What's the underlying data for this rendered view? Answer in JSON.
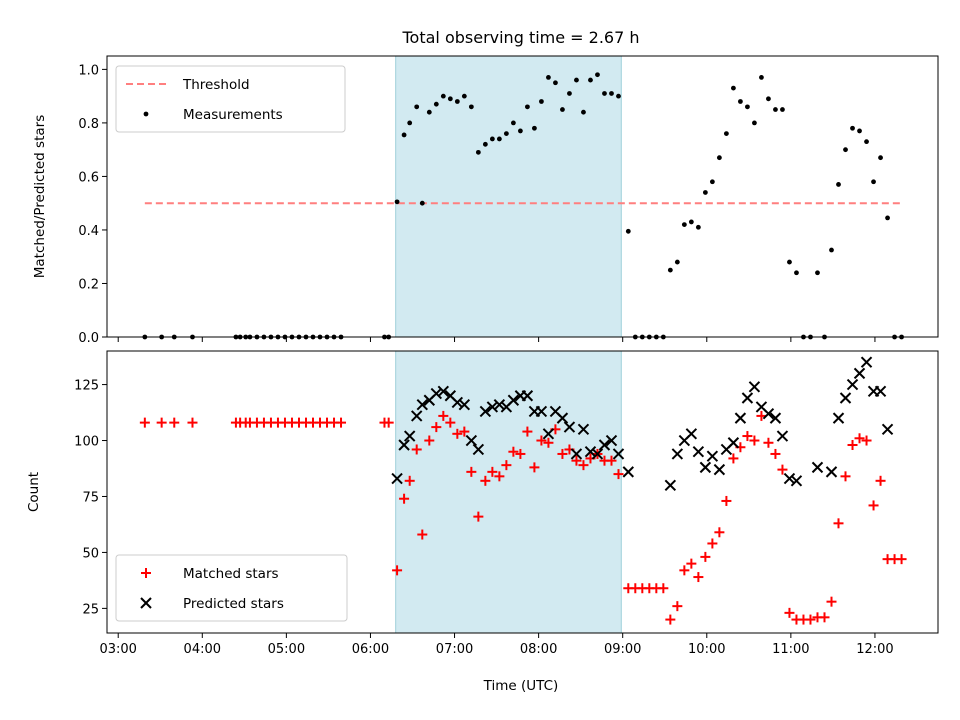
{
  "title": "Total observing time = 2.67 h",
  "xlabel": "Time (UTC)",
  "x_ticks": [
    "03:00",
    "04:00",
    "05:00",
    "06:00",
    "07:00",
    "08:00",
    "09:00",
    "10:00",
    "11:00",
    "12:00"
  ],
  "colors": {
    "measurement": "#000000",
    "threshold": "#ff7f7f",
    "matched": "#ff0000",
    "predicted": "#000000",
    "window": "#add8e6"
  },
  "chart_data": [
    {
      "type": "scatter",
      "ylabel": "Matched/Predicted stars",
      "xlim": [
        "02:52",
        "12:45"
      ],
      "ylim": [
        0,
        1.05
      ],
      "y_ticks": [
        "0.0",
        "0.2",
        "0.4",
        "0.6",
        "0.8",
        "1.0"
      ],
      "grid": false,
      "legend_position": "top-left",
      "observing_window": [
        "06:18",
        "08:59"
      ],
      "series": [
        {
          "name": "Threshold",
          "kind": "line",
          "style": "dashed",
          "points": [
            [
              "03:19",
              0.5
            ],
            [
              "12:20",
              0.5
            ]
          ]
        },
        {
          "name": "Measurements",
          "kind": "dots",
          "points": [
            [
              "03:19",
              0.0
            ],
            [
              "03:31",
              0.0
            ],
            [
              "03:40",
              0.0
            ],
            [
              "03:53",
              0.0
            ],
            [
              "04:24",
              0.0
            ],
            [
              "04:27",
              0.0
            ],
            [
              "04:31",
              0.0
            ],
            [
              "04:34",
              0.0
            ],
            [
              "04:39",
              0.0
            ],
            [
              "04:44",
              0.0
            ],
            [
              "04:49",
              0.0
            ],
            [
              "04:54",
              0.0
            ],
            [
              "04:59",
              0.0
            ],
            [
              "05:04",
              0.0
            ],
            [
              "05:09",
              0.0
            ],
            [
              "05:14",
              0.0
            ],
            [
              "05:19",
              0.0
            ],
            [
              "05:24",
              0.0
            ],
            [
              "05:29",
              0.0
            ],
            [
              "05:34",
              0.0
            ],
            [
              "05:39",
              0.0
            ],
            [
              "06:10",
              0.0
            ],
            [
              "06:13",
              0.0
            ],
            [
              "06:19",
              0.505
            ],
            [
              "06:24",
              0.755
            ],
            [
              "06:28",
              0.8
            ],
            [
              "06:33",
              0.86
            ],
            [
              "06:37",
              0.5
            ],
            [
              "06:42",
              0.84
            ],
            [
              "06:47",
              0.87
            ],
            [
              "06:52",
              0.9
            ],
            [
              "06:57",
              0.89
            ],
            [
              "07:02",
              0.88
            ],
            [
              "07:07",
              0.9
            ],
            [
              "07:12",
              0.86
            ],
            [
              "07:17",
              0.69
            ],
            [
              "07:22",
              0.72
            ],
            [
              "07:27",
              0.74
            ],
            [
              "07:32",
              0.74
            ],
            [
              "07:37",
              0.76
            ],
            [
              "07:42",
              0.8
            ],
            [
              "07:47",
              0.77
            ],
            [
              "07:52",
              0.86
            ],
            [
              "07:57",
              0.78
            ],
            [
              "08:02",
              0.88
            ],
            [
              "08:07",
              0.97
            ],
            [
              "08:12",
              0.95
            ],
            [
              "08:17",
              0.85
            ],
            [
              "08:22",
              0.91
            ],
            [
              "08:27",
              0.96
            ],
            [
              "08:32",
              0.84
            ],
            [
              "08:37",
              0.96
            ],
            [
              "08:42",
              0.98
            ],
            [
              "08:47",
              0.91
            ],
            [
              "08:52",
              0.91
            ],
            [
              "08:57",
              0.9
            ],
            [
              "09:04",
              0.395
            ],
            [
              "09:09",
              0.0
            ],
            [
              "09:14",
              0.0
            ],
            [
              "09:19",
              0.0
            ],
            [
              "09:24",
              0.0
            ],
            [
              "09:29",
              0.0
            ],
            [
              "09:34",
              0.25
            ],
            [
              "09:39",
              0.28
            ],
            [
              "09:44",
              0.42
            ],
            [
              "09:49",
              0.43
            ],
            [
              "09:54",
              0.41
            ],
            [
              "09:59",
              0.54
            ],
            [
              "10:04",
              0.58
            ],
            [
              "10:09",
              0.67
            ],
            [
              "10:14",
              0.76
            ],
            [
              "10:19",
              0.93
            ],
            [
              "10:24",
              0.88
            ],
            [
              "10:29",
              0.86
            ],
            [
              "10:34",
              0.8
            ],
            [
              "10:39",
              0.97
            ],
            [
              "10:44",
              0.89
            ],
            [
              "10:49",
              0.85
            ],
            [
              "10:54",
              0.85
            ],
            [
              "10:59",
              0.28
            ],
            [
              "11:04",
              0.24
            ],
            [
              "11:09",
              0.0
            ],
            [
              "11:14",
              0.0
            ],
            [
              "11:19",
              0.24
            ],
            [
              "11:24",
              0.0
            ],
            [
              "11:29",
              0.325
            ],
            [
              "11:34",
              0.57
            ],
            [
              "11:39",
              0.7
            ],
            [
              "11:44",
              0.78
            ],
            [
              "11:49",
              0.77
            ],
            [
              "11:54",
              0.73
            ],
            [
              "11:59",
              0.58
            ],
            [
              "12:04",
              0.67
            ],
            [
              "12:09",
              0.445
            ],
            [
              "12:14",
              0.0
            ],
            [
              "12:19",
              0.0
            ]
          ]
        }
      ]
    },
    {
      "type": "scatter",
      "ylabel": "Count",
      "xlim": [
        "02:52",
        "12:45"
      ],
      "ylim": [
        14,
        140
      ],
      "y_ticks": [
        "25",
        "50",
        "75",
        "100",
        "125"
      ],
      "grid": false,
      "legend_position": "bottom-left",
      "observing_window": [
        "06:18",
        "08:59"
      ],
      "series": [
        {
          "name": "Matched stars",
          "marker": "plus",
          "points": [
            [
              "03:19",
              108
            ],
            [
              "03:31",
              108
            ],
            [
              "03:40",
              108
            ],
            [
              "03:53",
              108
            ],
            [
              "04:24",
              108
            ],
            [
              "04:27",
              108
            ],
            [
              "04:31",
              108
            ],
            [
              "04:34",
              108
            ],
            [
              "04:39",
              108
            ],
            [
              "04:44",
              108
            ],
            [
              "04:49",
              108
            ],
            [
              "04:54",
              108
            ],
            [
              "04:59",
              108
            ],
            [
              "05:04",
              108
            ],
            [
              "05:09",
              108
            ],
            [
              "05:14",
              108
            ],
            [
              "05:19",
              108
            ],
            [
              "05:24",
              108
            ],
            [
              "05:29",
              108
            ],
            [
              "05:34",
              108
            ],
            [
              "05:39",
              108
            ],
            [
              "06:10",
              108
            ],
            [
              "06:13",
              108
            ],
            [
              "06:19",
              42
            ],
            [
              "06:24",
              74
            ],
            [
              "06:28",
              82
            ],
            [
              "06:33",
              96
            ],
            [
              "06:37",
              58
            ],
            [
              "06:42",
              100
            ],
            [
              "06:47",
              106
            ],
            [
              "06:52",
              111
            ],
            [
              "06:57",
              108
            ],
            [
              "07:02",
              103
            ],
            [
              "07:07",
              104
            ],
            [
              "07:12",
              86
            ],
            [
              "07:17",
              66
            ],
            [
              "07:22",
              82
            ],
            [
              "07:27",
              86
            ],
            [
              "07:32",
              84
            ],
            [
              "07:37",
              89
            ],
            [
              "07:42",
              95
            ],
            [
              "07:47",
              94
            ],
            [
              "07:52",
              104
            ],
            [
              "07:57",
              88
            ],
            [
              "08:02",
              100
            ],
            [
              "08:07",
              99
            ],
            [
              "08:12",
              105
            ],
            [
              "08:17",
              94
            ],
            [
              "08:22",
              96
            ],
            [
              "08:27",
              91
            ],
            [
              "08:32",
              89
            ],
            [
              "08:37",
              92
            ],
            [
              "08:42",
              94
            ],
            [
              "08:47",
              91
            ],
            [
              "08:52",
              91
            ],
            [
              "08:57",
              85
            ],
            [
              "09:04",
              34
            ],
            [
              "09:09",
              34
            ],
            [
              "09:14",
              34
            ],
            [
              "09:19",
              34
            ],
            [
              "09:24",
              34
            ],
            [
              "09:29",
              34
            ],
            [
              "09:34",
              20
            ],
            [
              "09:39",
              26
            ],
            [
              "09:44",
              42
            ],
            [
              "09:49",
              45
            ],
            [
              "09:54",
              39
            ],
            [
              "09:59",
              48
            ],
            [
              "10:04",
              54
            ],
            [
              "10:09",
              59
            ],
            [
              "10:14",
              73
            ],
            [
              "10:19",
              92
            ],
            [
              "10:24",
              97
            ],
            [
              "10:29",
              102
            ],
            [
              "10:34",
              100
            ],
            [
              "10:39",
              111
            ],
            [
              "10:44",
              99
            ],
            [
              "10:49",
              94
            ],
            [
              "10:54",
              87
            ],
            [
              "10:59",
              23
            ],
            [
              "11:04",
              20
            ],
            [
              "11:09",
              20
            ],
            [
              "11:14",
              20
            ],
            [
              "11:19",
              21
            ],
            [
              "11:24",
              21
            ],
            [
              "11:29",
              28
            ],
            [
              "11:34",
              63
            ],
            [
              "11:39",
              84
            ],
            [
              "11:44",
              98
            ],
            [
              "11:49",
              101
            ],
            [
              "11:54",
              100
            ],
            [
              "11:59",
              71
            ],
            [
              "12:04",
              82
            ],
            [
              "12:09",
              47
            ],
            [
              "12:14",
              47
            ],
            [
              "12:19",
              47
            ]
          ]
        },
        {
          "name": "Predicted stars",
          "marker": "x",
          "points": [
            [
              "06:19",
              83
            ],
            [
              "06:24",
              98
            ],
            [
              "06:28",
              102
            ],
            [
              "06:33",
              111
            ],
            [
              "06:37",
              116
            ],
            [
              "06:42",
              118
            ],
            [
              "06:47",
              121
            ],
            [
              "06:52",
              122
            ],
            [
              "06:57",
              120
            ],
            [
              "07:02",
              117
            ],
            [
              "07:07",
              116
            ],
            [
              "07:12",
              100
            ],
            [
              "07:17",
              96
            ],
            [
              "07:22",
              113
            ],
            [
              "07:27",
              115
            ],
            [
              "07:32",
              116
            ],
            [
              "07:37",
              115
            ],
            [
              "07:42",
              118
            ],
            [
              "07:47",
              120
            ],
            [
              "07:52",
              120
            ],
            [
              "07:57",
              113
            ],
            [
              "08:02",
              113
            ],
            [
              "08:07",
              103
            ],
            [
              "08:12",
              113
            ],
            [
              "08:17",
              110
            ],
            [
              "08:22",
              106
            ],
            [
              "08:27",
              94
            ],
            [
              "08:32",
              105
            ],
            [
              "08:37",
              95
            ],
            [
              "08:42",
              94
            ],
            [
              "08:47",
              98
            ],
            [
              "08:52",
              100
            ],
            [
              "08:57",
              94
            ],
            [
              "09:04",
              86
            ],
            [
              "09:34",
              80
            ],
            [
              "09:39",
              94
            ],
            [
              "09:44",
              100
            ],
            [
              "09:49",
              103
            ],
            [
              "09:54",
              95
            ],
            [
              "09:59",
              88
            ],
            [
              "10:04",
              93
            ],
            [
              "10:09",
              87
            ],
            [
              "10:14",
              96
            ],
            [
              "10:19",
              99
            ],
            [
              "10:24",
              110
            ],
            [
              "10:29",
              119
            ],
            [
              "10:34",
              124
            ],
            [
              "10:39",
              115
            ],
            [
              "10:44",
              112
            ],
            [
              "10:49",
              110
            ],
            [
              "10:54",
              102
            ],
            [
              "10:59",
              83
            ],
            [
              "11:04",
              82
            ],
            [
              "11:19",
              88
            ],
            [
              "11:29",
              86
            ],
            [
              "11:34",
              110
            ],
            [
              "11:39",
              119
            ],
            [
              "11:44",
              125
            ],
            [
              "11:49",
              130
            ],
            [
              "11:54",
              135
            ],
            [
              "11:59",
              122
            ],
            [
              "12:04",
              122
            ],
            [
              "12:09",
              105
            ]
          ]
        }
      ]
    }
  ]
}
